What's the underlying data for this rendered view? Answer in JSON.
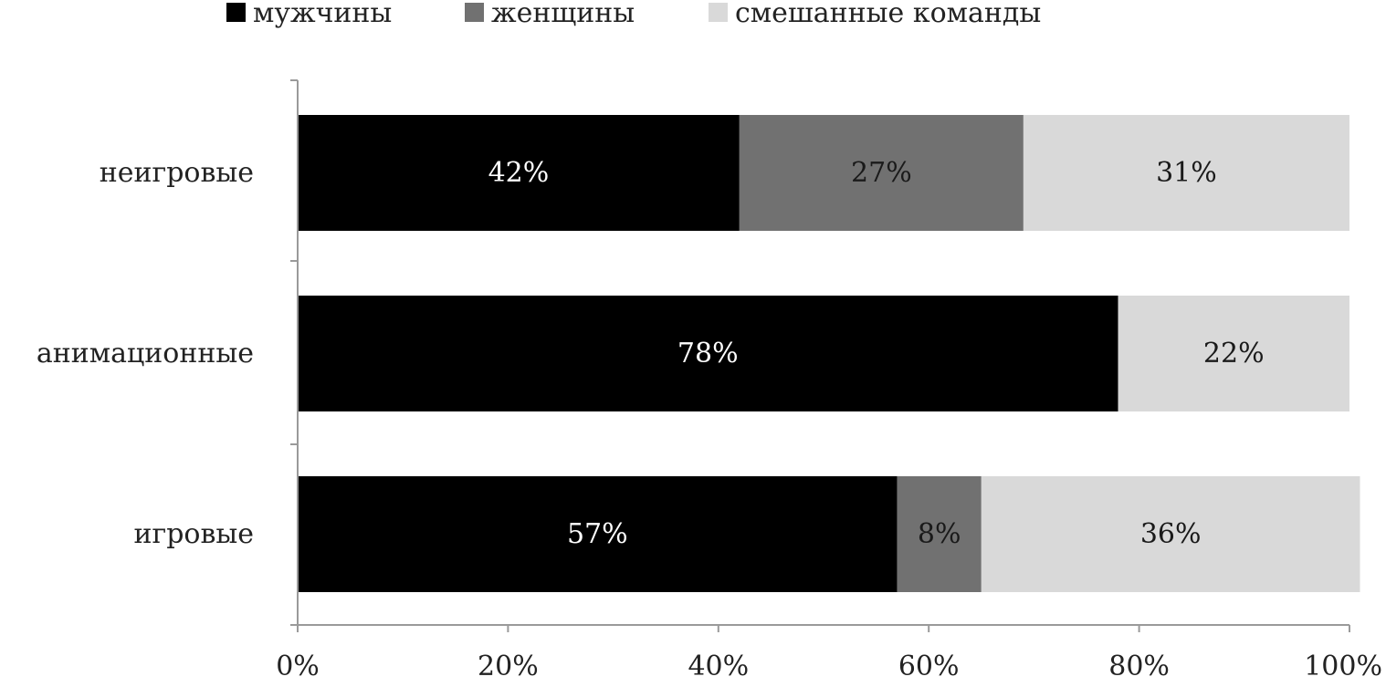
{
  "chart_data": {
    "type": "bar",
    "orientation": "horizontal",
    "stacked": "percent",
    "categories": [
      "неигровые",
      "анимационные",
      "игровые"
    ],
    "series": [
      {
        "name": "мужчины",
        "values": [
          42,
          78,
          57
        ],
        "labels": [
          "42%",
          "78%",
          "57%"
        ],
        "color": "#000000",
        "label_color": "#ffffff"
      },
      {
        "name": "женщины",
        "values": [
          27,
          0,
          8
        ],
        "labels": [
          "27%",
          "",
          "8%"
        ],
        "color": "#717171",
        "label_color": "#1a1a1a"
      },
      {
        "name": "смешанные команды",
        "values": [
          31,
          22,
          36
        ],
        "labels": [
          "31%",
          "22%",
          "36%"
        ],
        "color": "#d9d9d9",
        "label_color": "#1a1a1a"
      }
    ],
    "xlim": [
      0,
      100
    ],
    "x_ticks": [
      "0%",
      "20%",
      "40%",
      "60%",
      "80%",
      "100%"
    ],
    "xlabel": "",
    "ylabel": "",
    "grid": false,
    "legend_position": "top"
  }
}
